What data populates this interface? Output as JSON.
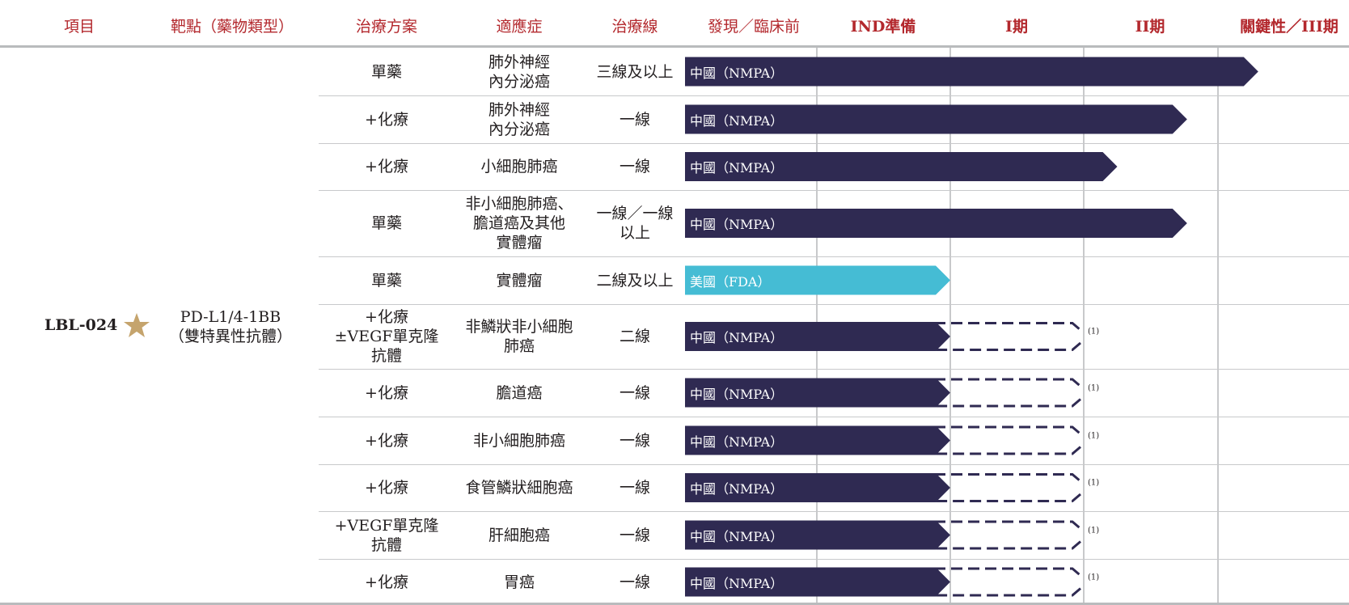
{
  "header": {
    "columns": [
      "項目",
      "靶點（藥物類型）",
      "治療方案",
      "適應症",
      "治療線",
      "發現／臨床前",
      "IND準備",
      "I期",
      "II期",
      "關鍵性／III期"
    ]
  },
  "project": {
    "name": "LBL-024",
    "star_icon": "star-icon",
    "star_color": "#c5a46d",
    "target_lines": [
      "PD-L1/4-1BB",
      "（雙特異性抗體）"
    ]
  },
  "colors": {
    "header_text": "#b3282d",
    "china_bar": "#2f2a52",
    "us_bar": "#45bcd4"
  },
  "stages": [
    "發現／臨床前",
    "IND準備",
    "I期",
    "II期",
    "關鍵性／III期"
  ],
  "rows": [
    {
      "regimen": [
        "單藥"
      ],
      "indication": [
        "肺外神經",
        "內分泌癌"
      ],
      "line": [
        "三線及以上"
      ],
      "bar_label": "中國（NMPA）",
      "region": "china",
      "stage_reached": 4.3,
      "planned_to": null,
      "note": ""
    },
    {
      "regimen": [
        "+化療"
      ],
      "indication": [
        "肺外神經",
        "內分泌癌"
      ],
      "line": [
        "一線"
      ],
      "bar_label": "中國（NMPA）",
      "region": "china",
      "stage_reached": 3.77,
      "planned_to": null,
      "note": ""
    },
    {
      "regimen": [
        "+化療"
      ],
      "indication": [
        "小細胞肺癌"
      ],
      "line": [
        "一線"
      ],
      "bar_label": "中國（NMPA）",
      "region": "china",
      "stage_reached": 3.25,
      "planned_to": null,
      "note": ""
    },
    {
      "regimen": [
        "單藥"
      ],
      "indication": [
        "非小細胞肺癌、",
        "膽道癌及其他",
        "實體瘤"
      ],
      "line": [
        "一線／一線",
        "以上"
      ],
      "bar_label": "中國（NMPA）",
      "region": "china",
      "stage_reached": 3.77,
      "planned_to": null,
      "note": ""
    },
    {
      "regimen": [
        "單藥"
      ],
      "indication": [
        "實體瘤"
      ],
      "line": [
        "二線及以上"
      ],
      "bar_label": "美國（FDA）",
      "region": "us",
      "stage_reached": 2.0,
      "planned_to": null,
      "note": ""
    },
    {
      "regimen": [
        "+化療",
        "±VEGF單克隆",
        "抗體"
      ],
      "indication": [
        "非鱗狀非小細胞",
        "肺癌"
      ],
      "line": [
        "二線"
      ],
      "bar_label": "中國（NMPA）",
      "region": "china",
      "stage_reached": 2.0,
      "planned_to": 3.0,
      "note": "(1)"
    },
    {
      "regimen": [
        "+化療"
      ],
      "indication": [
        "膽道癌"
      ],
      "line": [
        "一線"
      ],
      "bar_label": "中國（NMPA）",
      "region": "china",
      "stage_reached": 2.0,
      "planned_to": 3.0,
      "note": "(1)"
    },
    {
      "regimen": [
        "+化療"
      ],
      "indication": [
        "非小細胞肺癌"
      ],
      "line": [
        "一線"
      ],
      "bar_label": "中國（NMPA）",
      "region": "china",
      "stage_reached": 2.0,
      "planned_to": 3.0,
      "note": "(1)"
    },
    {
      "regimen": [
        "+化療"
      ],
      "indication": [
        "食管鱗狀細胞癌"
      ],
      "line": [
        "一線"
      ],
      "bar_label": "中國（NMPA）",
      "region": "china",
      "stage_reached": 2.0,
      "planned_to": 3.0,
      "note": "(1)"
    },
    {
      "regimen": [
        "+VEGF單克隆",
        "抗體"
      ],
      "indication": [
        "肝細胞癌"
      ],
      "line": [
        "一線"
      ],
      "bar_label": "中國（NMPA）",
      "region": "china",
      "stage_reached": 2.0,
      "planned_to": 3.0,
      "note": "(1)"
    },
    {
      "regimen": [
        "+化療"
      ],
      "indication": [
        "胃癌"
      ],
      "line": [
        "一線"
      ],
      "bar_label": "中國（NMPA）",
      "region": "china",
      "stage_reached": 2.0,
      "planned_to": 3.0,
      "note": "(1)"
    }
  ]
}
